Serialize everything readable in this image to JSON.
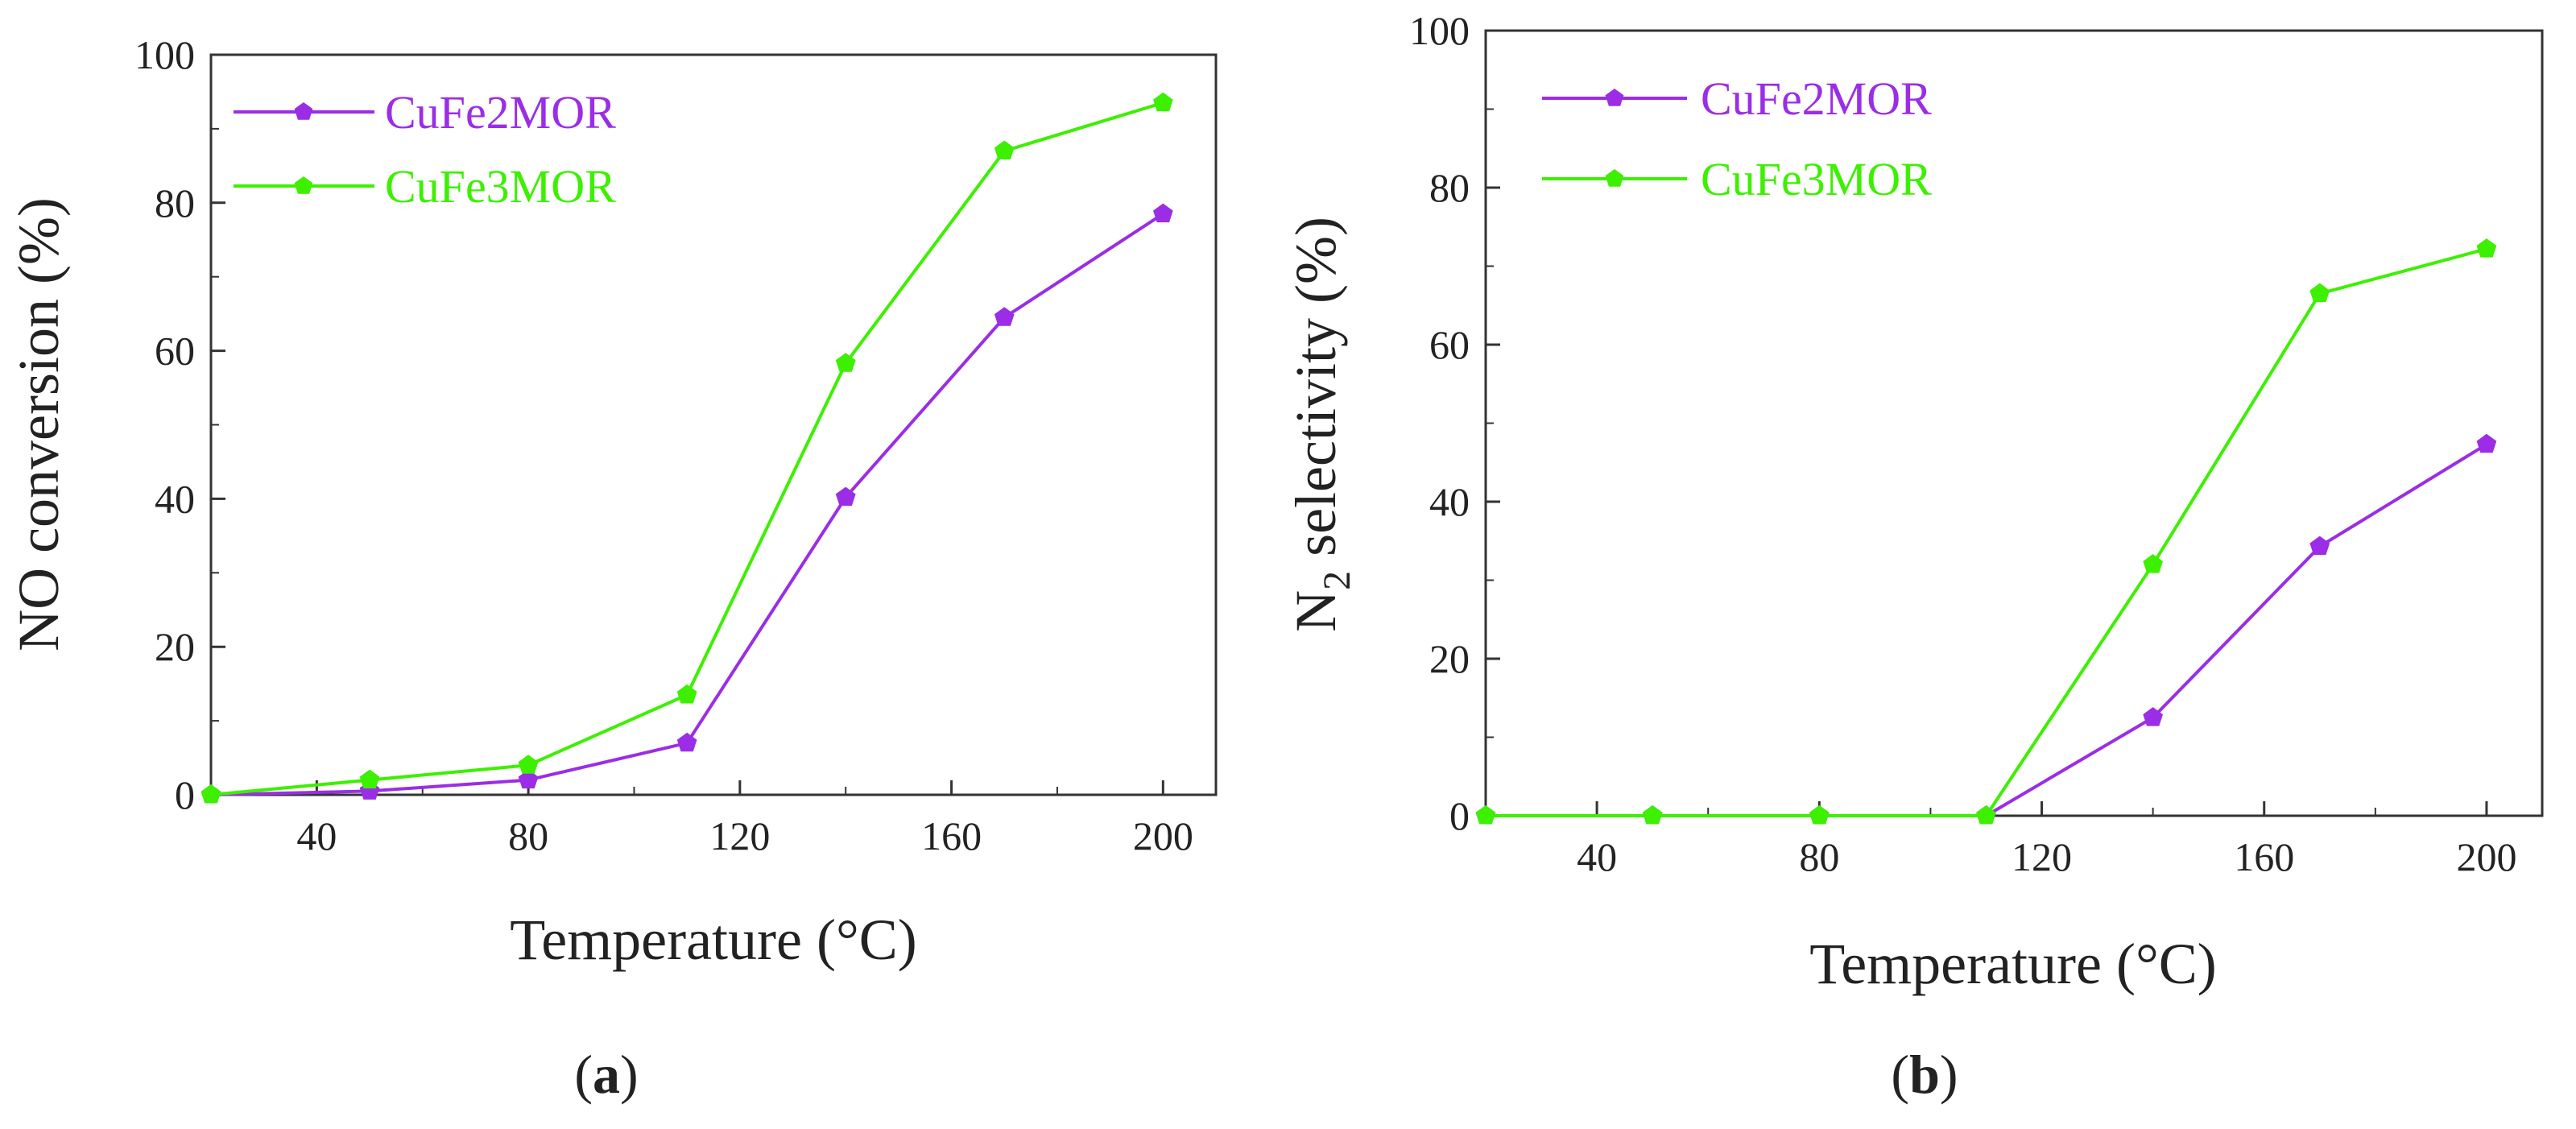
{
  "chart_data": [
    {
      "type": "line",
      "panel_label": "a",
      "title": "",
      "xlabel": "Temperature (°C)",
      "ylabel": "NO conversion (%)",
      "xlim": [
        20,
        210
      ],
      "ylim": [
        0,
        100
      ],
      "xticks": [
        40,
        80,
        120,
        160,
        200
      ],
      "yticks": [
        0,
        20,
        40,
        60,
        80,
        100
      ],
      "legend_position": "top-left",
      "grid": false,
      "x": [
        20,
        50,
        80,
        110,
        140,
        170,
        200
      ],
      "series": [
        {
          "name": "CuFe2MOR",
          "color": "#9b2de6",
          "values": [
            0,
            0.5,
            2,
            7,
            40.2,
            64.5,
            78.5
          ]
        },
        {
          "name": "CuFe3MOR",
          "color": "#3cf000",
          "values": [
            0,
            2,
            4,
            13.5,
            58.3,
            87,
            93.5
          ]
        }
      ]
    },
    {
      "type": "line",
      "panel_label": "b",
      "title": "",
      "xlabel": "Temperature (°C)",
      "ylabel_main": "N",
      "ylabel_subscript": "2",
      "ylabel_rest": " selectivity (%)",
      "xlim": [
        20,
        210
      ],
      "ylim": [
        0,
        100
      ],
      "xticks": [
        40,
        80,
        120,
        160,
        200
      ],
      "yticks": [
        0,
        20,
        40,
        60,
        80,
        100
      ],
      "legend_position": "top-left",
      "grid": false,
      "x": [
        20,
        50,
        80,
        110,
        140,
        170,
        200
      ],
      "series": [
        {
          "name": "CuFe2MOR",
          "color": "#9b2de6",
          "values": [
            0,
            0,
            0,
            0,
            12.5,
            34.3,
            47.3
          ]
        },
        {
          "name": "CuFe3MOR",
          "color": "#3cf000",
          "values": [
            0,
            0,
            0,
            0,
            32,
            66.5,
            72.2
          ]
        }
      ]
    }
  ]
}
